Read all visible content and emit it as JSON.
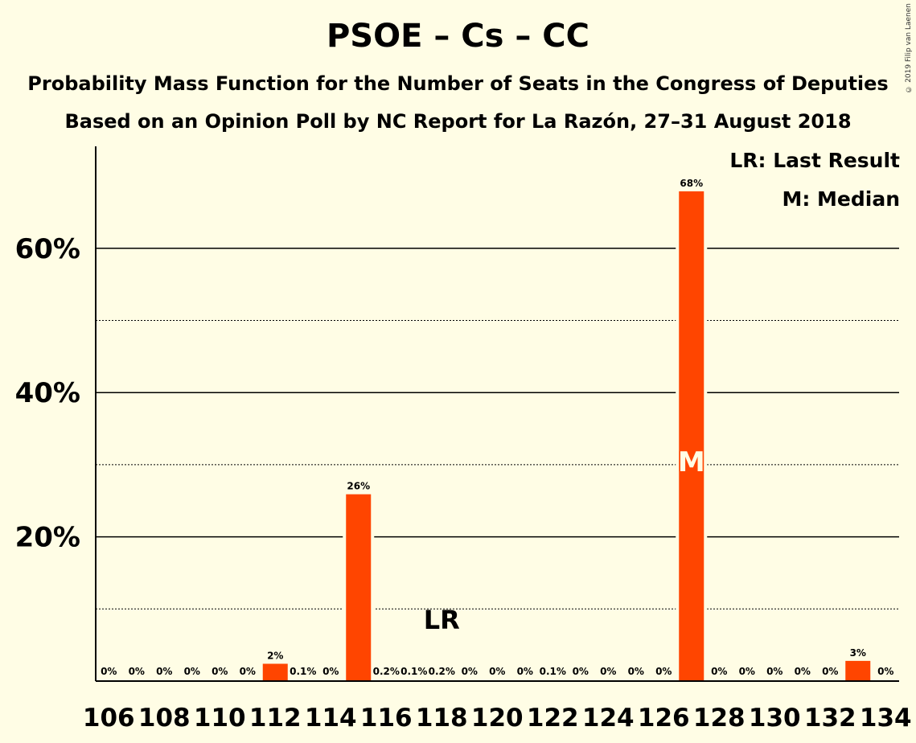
{
  "title": "PSOE – Cs – CC",
  "subtitle1": "Probability Mass Function for the Number of Seats in the Congress of Deputies",
  "subtitle2": "Based on an Opinion Poll by NC Report for La Razón, 27–31 August 2018",
  "copyright": "© 2019 Filip van Laenen",
  "legend": {
    "last_result": "LR: Last Result",
    "median": "M: Median"
  },
  "colors": {
    "bar": "#FF4500",
    "background": "#FFFDE5",
    "median_text": "#FFFDE5"
  },
  "chart_data": {
    "type": "bar",
    "title": "PSOE – Cs – CC",
    "x": [
      106,
      107,
      108,
      109,
      110,
      111,
      112,
      113,
      114,
      115,
      116,
      117,
      118,
      119,
      120,
      121,
      122,
      123,
      124,
      125,
      126,
      127,
      128,
      129,
      130,
      131,
      132,
      133,
      134
    ],
    "values": [
      0,
      0,
      0,
      0,
      0,
      0,
      2.4,
      0.1,
      0,
      25.9,
      0.2,
      0.1,
      0.2,
      0,
      0,
      0,
      0.1,
      0,
      0,
      0,
      0,
      67.9,
      0,
      0,
      0,
      0,
      0,
      2.8,
      0
    ],
    "labels": [
      "0%",
      "0%",
      "0%",
      "0%",
      "0%",
      "0%",
      "2%",
      "0.1%",
      "0%",
      "26%",
      "0.2%",
      "0.1%",
      "0.2%",
      "0%",
      "0%",
      "0%",
      "0.1%",
      "0%",
      "0%",
      "0%",
      "0%",
      "68%",
      "0%",
      "0%",
      "0%",
      "0%",
      "0%",
      "3%",
      "0%"
    ],
    "xticks": [
      106,
      108,
      110,
      112,
      114,
      116,
      118,
      120,
      122,
      124,
      126,
      128,
      130,
      132,
      134
    ],
    "yticks": [
      {
        "value": 20,
        "label": "20%"
      },
      {
        "value": 40,
        "label": "40%"
      },
      {
        "value": 60,
        "label": "60%"
      }
    ],
    "minor_grid": [
      10,
      30,
      50
    ],
    "ylim": [
      0,
      74
    ],
    "last_result": {
      "x": 118,
      "label": "LR"
    },
    "median": {
      "x": 127,
      "label": "M"
    }
  }
}
